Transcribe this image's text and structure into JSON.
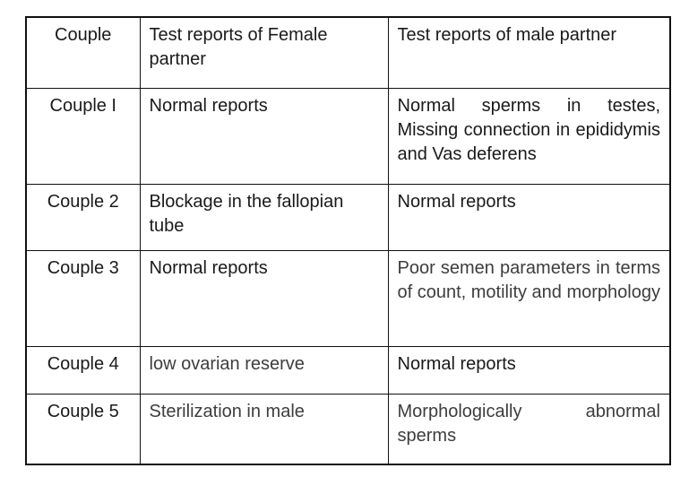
{
  "table": {
    "header": [
      "Couple",
      "Test reports of Female partner",
      "Test reports of male partner"
    ],
    "rows": [
      [
        "Couple I",
        "Normal reports",
        "Normal sperms in testes, Missing connection in epididymis and Vas deferens"
      ],
      [
        "Couple 2",
        "Blockage in the fallopian tube",
        "Normal reports"
      ],
      [
        "Couple 3",
        "Normal reports",
        "Poor semen parameters in terms of count, motility and morphology"
      ],
      [
        "Couple 4",
        "low ovarian reserve",
        "Normal reports"
      ],
      [
        "Couple 5",
        "Sterilization in male",
        "Morphologically abnormal sperms"
      ]
    ]
  }
}
